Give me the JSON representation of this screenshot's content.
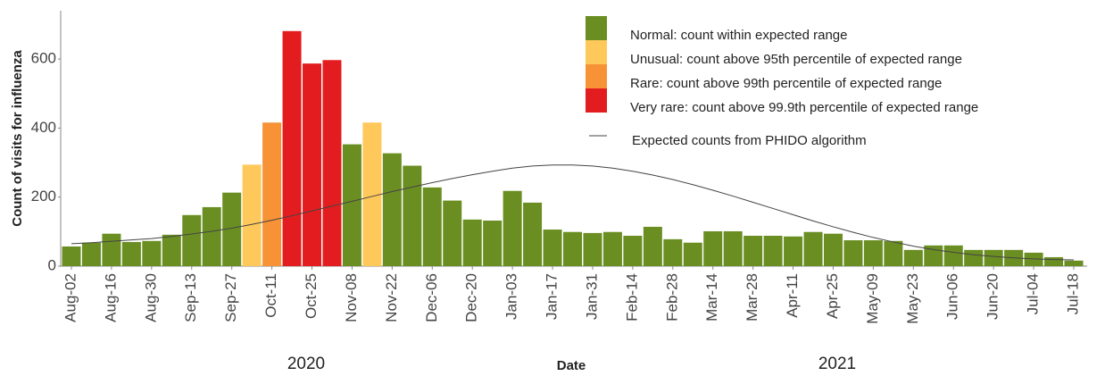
{
  "chart_data": {
    "type": "bar",
    "x_label": "Date",
    "y_label": "Count of visits for influenza",
    "year_labels": [
      "2020",
      "2021"
    ],
    "categories": [
      "Aug-02",
      null,
      "Aug-16",
      null,
      "Aug-30",
      null,
      "Sep-13",
      null,
      "Sep-27",
      null,
      "Oct-11",
      null,
      "Oct-25",
      null,
      "Nov-08",
      null,
      "Nov-22",
      null,
      "Dec-06",
      null,
      "Dec-20",
      null,
      "Jan-03",
      null,
      "Jan-17",
      null,
      "Jan-31",
      null,
      "Feb-14",
      null,
      "Feb-28",
      null,
      "Mar-14",
      null,
      "Mar-28",
      null,
      "Apr-11",
      null,
      "Apr-25",
      null,
      "May-09",
      null,
      "May-23",
      null,
      "Jun-06",
      null,
      "Jun-20",
      null,
      "Jul-04",
      null,
      "Jul-18"
    ],
    "values": [
      57,
      68,
      94,
      70,
      73,
      91,
      148,
      171,
      213,
      294,
      416,
      681,
      587,
      597,
      353,
      416,
      327,
      291,
      228,
      190,
      135,
      132,
      218,
      184,
      106,
      99,
      96,
      99,
      88,
      114,
      78,
      68,
      101,
      101,
      88,
      88,
      86,
      99,
      94,
      75,
      75,
      73,
      47,
      60,
      60,
      47,
      47,
      47,
      39,
      26,
      16
    ],
    "colors": [
      "#6b8e23",
      "#6b8e23",
      "#6b8e23",
      "#6b8e23",
      "#6b8e23",
      "#6b8e23",
      "#6b8e23",
      "#6b8e23",
      "#6b8e23",
      "#ffc85a",
      "#f79237",
      "#e31d1f",
      "#e31d1f",
      "#e31d1f",
      "#6b8e23",
      "#ffc85a",
      "#6b8e23",
      "#6b8e23",
      "#6b8e23",
      "#6b8e23",
      "#6b8e23",
      "#6b8e23",
      "#6b8e23",
      "#6b8e23",
      "#6b8e23",
      "#6b8e23",
      "#6b8e23",
      "#6b8e23",
      "#6b8e23",
      "#6b8e23",
      "#6b8e23",
      "#6b8e23",
      "#6b8e23",
      "#6b8e23",
      "#6b8e23",
      "#6b8e23",
      "#6b8e23",
      "#6b8e23",
      "#6b8e23",
      "#6b8e23",
      "#6b8e23",
      "#6b8e23",
      "#6b8e23",
      "#6b8e23",
      "#6b8e23",
      "#6b8e23",
      "#6b8e23",
      "#6b8e23",
      "#6b8e23",
      "#6b8e23",
      "#6b8e23"
    ],
    "legend": [
      {
        "label": "Normal: count within expected range",
        "color": "#6b8e23"
      },
      {
        "label": "Unusual: count above 95th percentile of expected range",
        "color": "#ffc85a"
      },
      {
        "label": "Rare: count above 99th percentile of expected range",
        "color": "#f79237"
      },
      {
        "label": "Very rare: count above 99.9th percentile of expected range",
        "color": "#e31d1f"
      }
    ],
    "expected": {
      "name": "Expected counts from PHIDO algorithm",
      "color": "#444444",
      "values": [
        65,
        68,
        72,
        76,
        80,
        86,
        93,
        101,
        110,
        121,
        133,
        146,
        160,
        174,
        188,
        202,
        216,
        229,
        242,
        254,
        265,
        275,
        284,
        290,
        293,
        293,
        290,
        284,
        275,
        264,
        251,
        236,
        220,
        203,
        185,
        167,
        149,
        131,
        114,
        98,
        83,
        70,
        58,
        48,
        40,
        33,
        28,
        24,
        21,
        19,
        18
      ]
    },
    "ylim": [
      0,
      740
    ],
    "yticks": [
      0,
      200,
      400,
      600
    ]
  }
}
